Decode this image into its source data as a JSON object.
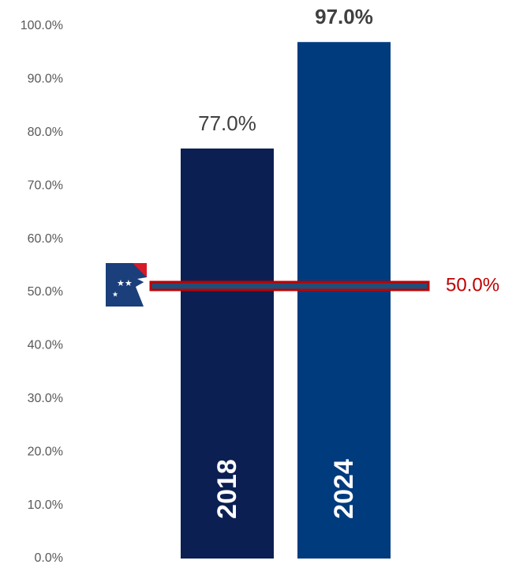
{
  "chart_data": {
    "type": "bar",
    "categories": [
      "2018",
      "2024"
    ],
    "values": [
      77,
      97
    ],
    "value_labels": [
      "77.0%",
      "97.0%"
    ],
    "colors": [
      "#0b1f52",
      "#003b7e"
    ],
    "ylim": [
      0,
      100
    ],
    "yticks": [
      {
        "value": 0,
        "label": "0.0%"
      },
      {
        "value": 10,
        "label": "10.0%"
      },
      {
        "value": 20,
        "label": "20.0%"
      },
      {
        "value": 30,
        "label": "30.0%"
      },
      {
        "value": 40,
        "label": "40.0%"
      },
      {
        "value": 50,
        "label": "50.0%"
      },
      {
        "value": 60,
        "label": "60.0%"
      },
      {
        "value": 70,
        "label": "70.0%"
      },
      {
        "value": 80,
        "label": "80.0%"
      },
      {
        "value": 90,
        "label": "90.0%"
      },
      {
        "value": 100,
        "label": "100.0%"
      }
    ],
    "grid": false,
    "reference_line": {
      "value": 50,
      "label": "50.0%",
      "color": "#c00000",
      "fill": "#1f4e79"
    }
  }
}
